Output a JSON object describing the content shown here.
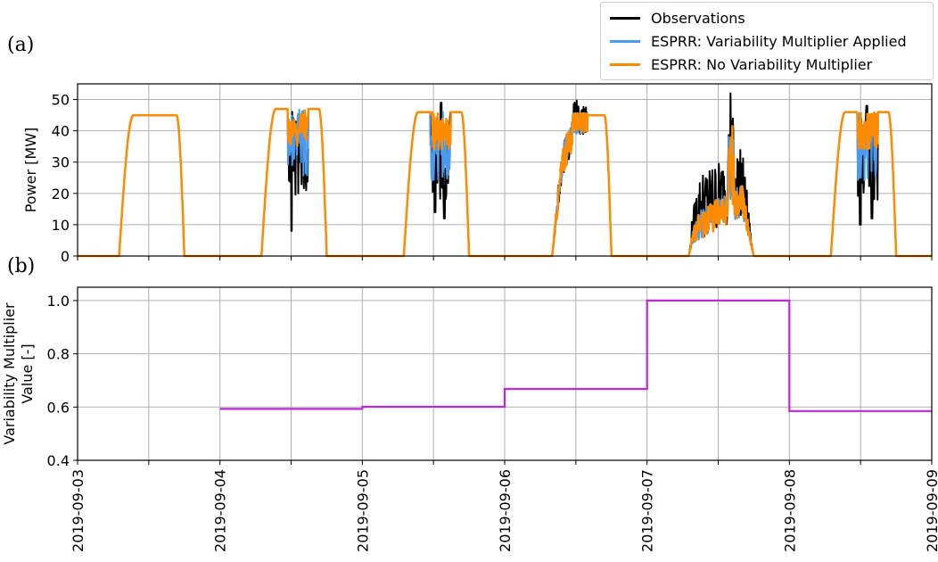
{
  "panels": {
    "a": "(a)",
    "b": "(b)"
  },
  "colors": {
    "observations": "#000000",
    "applied": "#4a9af0",
    "none": "#ff8c00",
    "multiplier": "#b92bd9",
    "grid": "#b0b0b0"
  },
  "legend": [
    {
      "label": "Observations",
      "color": "#000000"
    },
    {
      "label": "ESPRR: Variability Multiplier Applied",
      "color": "#4a9af0"
    },
    {
      "label": "ESPRR: No Variability Multiplier",
      "color": "#ff8c00"
    }
  ],
  "chart_data": [
    {
      "type": "line",
      "panel": "(a)",
      "ylabel": "Power [MW]",
      "ylim": [
        0,
        55
      ],
      "yticks": [
        "0",
        "10",
        "20",
        "30",
        "40",
        "50"
      ],
      "xlim": [
        "2019-09-03",
        "2019-09-09"
      ],
      "grid": true,
      "legend_position": "top-right, above plot",
      "series": [
        {
          "name": "Observations",
          "days": [
            {
              "start": "2019-09-03 07:00",
              "end": "2019-09-03 18:00",
              "plateau": 45
            },
            {
              "start": "2019-09-04 07:00",
              "end": "2019-09-04 18:00",
              "plateau": 47,
              "spikes": [
                [
                  0.46,
                  8
                ],
                [
                  0.55,
                  40
                ],
                [
                  0.6,
                  30
                ]
              ]
            },
            {
              "start": "2019-09-05 07:00",
              "end": "2019-09-05 18:00",
              "plateau": 46,
              "spikes": [
                [
                  0.48,
                  14
                ],
                [
                  0.57,
                  49
                ],
                [
                  0.62,
                  12
                ]
              ]
            },
            {
              "start": "2019-09-06 08:00",
              "end": "2019-09-06 18:00",
              "plateau": 45,
              "peak": 50
            },
            {
              "start": "2019-09-07 07:00",
              "end": "2019-09-07 18:00",
              "peak": 49,
              "variable": true
            },
            {
              "start": "2019-09-08 07:00",
              "end": "2019-09-08 18:00",
              "plateau": 46,
              "spikes": [
                [
                  0.45,
                  10
                ],
                [
                  0.55,
                  48
                ],
                [
                  0.63,
                  12
                ]
              ]
            }
          ]
        },
        {
          "name": "ESPRR: Variability Multiplier Applied"
        },
        {
          "name": "ESPRR: No Variability Multiplier"
        }
      ]
    },
    {
      "type": "line",
      "panel": "(b)",
      "ylabel": "Variability Multiplier\nValue [-]",
      "ylim": [
        0.4,
        1.05
      ],
      "yticks": [
        "0.4",
        "0.6",
        "0.8",
        "1.0"
      ],
      "x": [
        "2019-09-04",
        "2019-09-05",
        "2019-09-05",
        "2019-09-06",
        "2019-09-06",
        "2019-09-07",
        "2019-09-07",
        "2019-09-08",
        "2019-09-08",
        "2019-09-09"
      ],
      "y": [
        0.593,
        0.593,
        0.601,
        0.601,
        0.668,
        0.668,
        1.0,
        1.0,
        0.585,
        0.585
      ],
      "xticks": [
        "2019-09-03",
        "2019-09-04",
        "2019-09-05",
        "2019-09-06",
        "2019-09-07",
        "2019-09-08",
        "2019-09-09"
      ],
      "grid": true
    }
  ]
}
